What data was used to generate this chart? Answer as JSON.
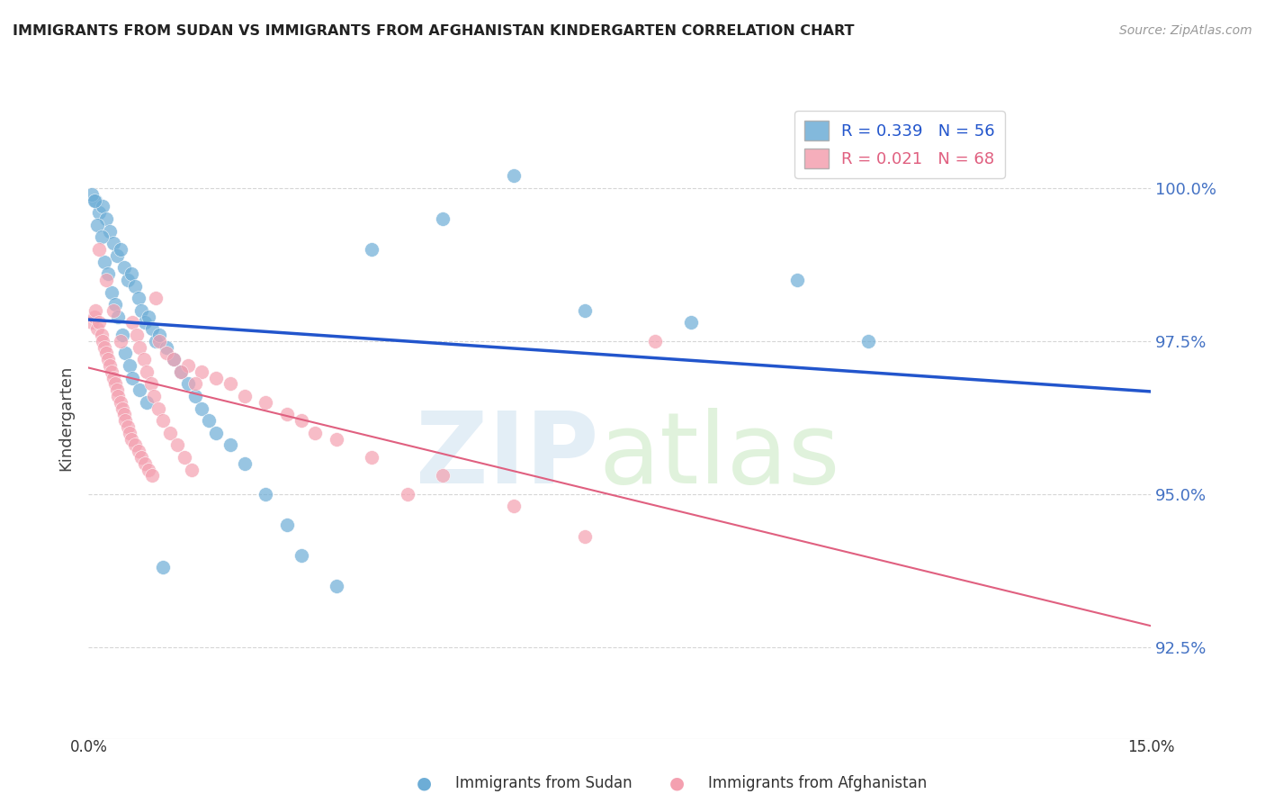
{
  "title": "IMMIGRANTS FROM SUDAN VS IMMIGRANTS FROM AFGHANISTAN KINDERGARTEN CORRELATION CHART",
  "source": "Source: ZipAtlas.com",
  "ylabel_label": "Kindergarten",
  "yticks": [
    92.5,
    95.0,
    97.5,
    100.0
  ],
  "ytick_labels": [
    "92.5%",
    "95.0%",
    "97.5%",
    "100.0%"
  ],
  "xlim": [
    0.0,
    15.0
  ],
  "ylim": [
    91.0,
    101.5
  ],
  "sudan_color": "#6dadd6",
  "afghanistan_color": "#f4a0b0",
  "sudan_line_color": "#2255cc",
  "afghanistan_line_color": "#e06080",
  "legend_sudan": "R = 0.339   N = 56",
  "legend_afghanistan": "R = 0.021   N = 68",
  "legend_label_sudan": "Immigrants from Sudan",
  "legend_label_afghanistan": "Immigrants from Afghanistan",
  "sudan_x": [
    0.1,
    0.15,
    0.2,
    0.25,
    0.3,
    0.35,
    0.4,
    0.45,
    0.5,
    0.55,
    0.6,
    0.65,
    0.7,
    0.75,
    0.8,
    0.85,
    0.9,
    0.95,
    1.0,
    1.1,
    1.2,
    1.3,
    1.4,
    1.5,
    1.6,
    1.7,
    1.8,
    2.0,
    2.2,
    2.5,
    2.8,
    3.0,
    3.5,
    4.0,
    5.0,
    6.0,
    7.0,
    8.5,
    10.0,
    11.0,
    0.05,
    0.08,
    0.12,
    0.18,
    0.22,
    0.28,
    0.32,
    0.38,
    0.42,
    0.48,
    0.52,
    0.58,
    0.62,
    0.72,
    0.82,
    1.05
  ],
  "sudan_y": [
    99.8,
    99.6,
    99.7,
    99.5,
    99.3,
    99.1,
    98.9,
    99.0,
    98.7,
    98.5,
    98.6,
    98.4,
    98.2,
    98.0,
    97.8,
    97.9,
    97.7,
    97.5,
    97.6,
    97.4,
    97.2,
    97.0,
    96.8,
    96.6,
    96.4,
    96.2,
    96.0,
    95.8,
    95.5,
    95.0,
    94.5,
    94.0,
    93.5,
    99.0,
    99.5,
    100.2,
    98.0,
    97.8,
    98.5,
    97.5,
    99.9,
    99.8,
    99.4,
    99.2,
    98.8,
    98.6,
    98.3,
    98.1,
    97.9,
    97.6,
    97.3,
    97.1,
    96.9,
    96.7,
    96.5,
    93.8
  ],
  "afghanistan_x": [
    0.05,
    0.08,
    0.1,
    0.12,
    0.15,
    0.18,
    0.2,
    0.22,
    0.25,
    0.28,
    0.3,
    0.32,
    0.35,
    0.38,
    0.4,
    0.42,
    0.45,
    0.48,
    0.5,
    0.52,
    0.55,
    0.58,
    0.6,
    0.65,
    0.7,
    0.75,
    0.8,
    0.85,
    0.9,
    0.95,
    1.0,
    1.1,
    1.2,
    1.4,
    1.6,
    1.8,
    2.0,
    2.5,
    3.0,
    3.5,
    4.0,
    5.0,
    6.0,
    7.0,
    1.3,
    1.5,
    0.62,
    0.68,
    0.72,
    0.78,
    0.82,
    0.88,
    0.92,
    0.98,
    1.05,
    1.15,
    1.25,
    1.35,
    1.45,
    2.2,
    2.8,
    3.2,
    4.5,
    8.0,
    0.15,
    0.25,
    0.35,
    0.45
  ],
  "afghanistan_y": [
    97.8,
    97.9,
    98.0,
    97.7,
    97.8,
    97.6,
    97.5,
    97.4,
    97.3,
    97.2,
    97.1,
    97.0,
    96.9,
    96.8,
    96.7,
    96.6,
    96.5,
    96.4,
    96.3,
    96.2,
    96.1,
    96.0,
    95.9,
    95.8,
    95.7,
    95.6,
    95.5,
    95.4,
    95.3,
    98.2,
    97.5,
    97.3,
    97.2,
    97.1,
    97.0,
    96.9,
    96.8,
    96.5,
    96.2,
    95.9,
    95.6,
    95.3,
    94.8,
    94.3,
    97.0,
    96.8,
    97.8,
    97.6,
    97.4,
    97.2,
    97.0,
    96.8,
    96.6,
    96.4,
    96.2,
    96.0,
    95.8,
    95.6,
    95.4,
    96.6,
    96.3,
    96.0,
    95.0,
    97.5,
    99.0,
    98.5,
    98.0,
    97.5
  ]
}
